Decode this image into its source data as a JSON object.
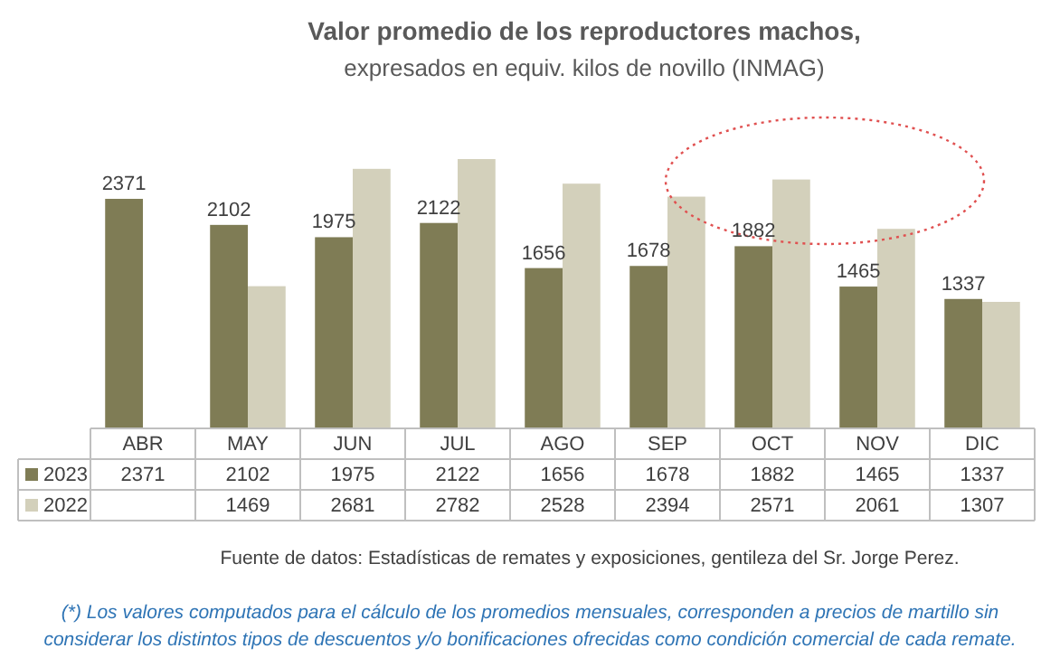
{
  "chart_data": {
    "type": "bar",
    "title": "Valor promedio de los reproductores machos,",
    "subtitle": "expresados en equiv. kilos de novillo (INMAG)",
    "categories": [
      "ABR",
      "MAY",
      "JUN",
      "JUL",
      "AGO",
      "SEP",
      "OCT",
      "NOV",
      "DIC"
    ],
    "series": [
      {
        "name": "2023",
        "color": "#7f7c55",
        "values": [
          2371,
          2102,
          1975,
          2122,
          1656,
          1678,
          1882,
          1465,
          1337
        ]
      },
      {
        "name": "2022",
        "color": "#d3d0bb",
        "values": [
          null,
          1469,
          2681,
          2782,
          2528,
          2394,
          2571,
          2061,
          1307
        ]
      }
    ],
    "ylim": [
      0,
      2782
    ],
    "data_labels": true,
    "legend": "bottom",
    "annotations": [
      {
        "text": "2371",
        "x": "ABR",
        "y": 2371
      },
      {
        "text": "2102",
        "x": "MAY",
        "y": 2102
      },
      {
        "text": "1975",
        "x": "JUN",
        "y": 1975
      },
      {
        "text": "2122",
        "x": "JUL",
        "y": 2122
      },
      {
        "text": "1656",
        "x": "AGO",
        "y": 1656
      },
      {
        "text": "1678",
        "x": "SEP",
        "y": 1678
      },
      {
        "text": "1882",
        "x": "OCT",
        "y": 1882
      },
      {
        "text": "1465",
        "x": "NOV",
        "y": 1465
      },
      {
        "text": "1337",
        "x": "DIC",
        "y": 1337
      },
      "Fuente de datos: Estadísticas de remates y exposiciones, gentileza del Sr. Jorge Perez.",
      "(*) Los valores computados para el cálculo de los promedios mensuales, corresponden a precios de martillo sin considerar los distintos tipos de descuentos y/o bonificaciones ofrecidas como condición comercial de cada remate."
    ]
  }
}
